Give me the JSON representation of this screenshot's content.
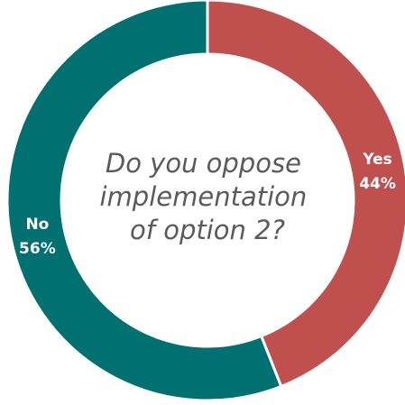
{
  "chart_data": {
    "type": "pie",
    "title_lines": [
      "Do you oppose",
      "implementation",
      "of option 2?"
    ],
    "categories": [
      "Yes",
      "No"
    ],
    "values": [
      44,
      56
    ],
    "value_labels": [
      "44%",
      "56%"
    ],
    "colors": [
      "#c0504d",
      "#007070"
    ],
    "legend": "none"
  }
}
